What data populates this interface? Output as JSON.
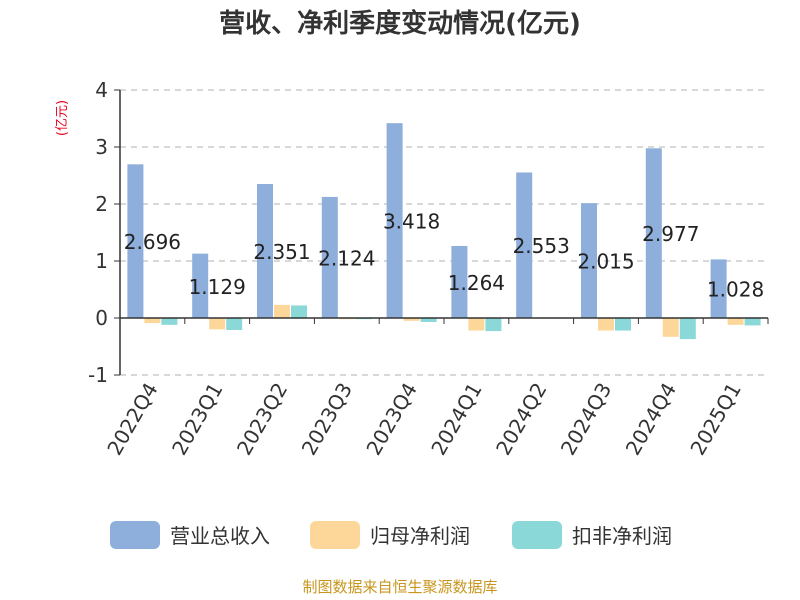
{
  "chart_data": {
    "type": "bar",
    "title": "营收、净利季度变动情况(亿元)",
    "ylabel": "(亿元)",
    "xlabel": "",
    "ylim": [
      -1,
      4
    ],
    "yticks": [
      -1,
      0,
      1,
      2,
      3,
      4
    ],
    "grid": true,
    "legend_position": "bottom",
    "categories": [
      "2022Q4",
      "2023Q1",
      "2023Q2",
      "2023Q3",
      "2023Q4",
      "2024Q1",
      "2024Q2",
      "2024Q3",
      "2024Q4",
      "2025Q1"
    ],
    "series": [
      {
        "name": "营业总收入",
        "color": "#8eaedb",
        "values": [
          2.696,
          1.129,
          2.351,
          2.124,
          3.418,
          1.264,
          2.553,
          2.015,
          2.977,
          1.028
        ],
        "labels": [
          "2.696",
          "1.129",
          "2.351",
          "2.124",
          "3.418",
          "1.264",
          "2.553",
          "2.015",
          "2.977",
          "1.028"
        ]
      },
      {
        "name": "归母净利润",
        "color": "#fdd79a",
        "values": [
          -0.09,
          -0.2,
          0.23,
          -0.02,
          -0.05,
          -0.22,
          -0.01,
          -0.22,
          -0.33,
          -0.12
        ]
      },
      {
        "name": "扣非净利润",
        "color": "#8ad8d7",
        "values": [
          -0.12,
          -0.21,
          0.22,
          -0.02,
          -0.07,
          -0.23,
          -0.01,
          -0.22,
          -0.37,
          -0.13
        ]
      }
    ]
  },
  "source": "制图数据来自恒生聚源数据库",
  "colors": {
    "title": "#333333",
    "ylabel": "#e8001c",
    "axis": "#333333",
    "grid": "#cccccc",
    "source": "#c8961e"
  }
}
